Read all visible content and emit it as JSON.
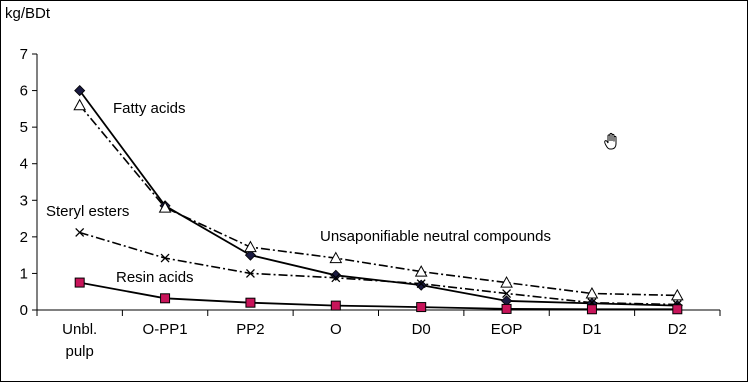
{
  "chart_data": {
    "type": "line",
    "ylabel": "kg/BDt",
    "ylim": [
      0,
      7
    ],
    "yticks": [
      0,
      1,
      2,
      3,
      4,
      5,
      6,
      7
    ],
    "categories": [
      "Unbl. pulp",
      "O-PP1",
      "PP2",
      "O",
      "D0",
      "EOP",
      "D1",
      "D2"
    ],
    "series": [
      {
        "name": "Fatty acids",
        "marker": "diamond",
        "line": "solid",
        "color": "#000000",
        "marker_color": "#1a1a40",
        "values": [
          6.0,
          2.85,
          1.5,
          0.95,
          0.68,
          0.25,
          0.18,
          0.12
        ]
      },
      {
        "name": "Unsaponifiable neutral compounds",
        "marker": "triangle",
        "line": "dashdot",
        "color": "#000000",
        "marker_color": "#ffffff",
        "values": [
          5.6,
          2.8,
          1.72,
          1.42,
          1.05,
          0.75,
          0.45,
          0.4
        ]
      },
      {
        "name": "Steryl esters",
        "marker": "x",
        "line": "dashdot",
        "color": "#000000",
        "marker_color": "#000000",
        "values": [
          2.12,
          1.42,
          1.0,
          0.88,
          0.72,
          0.45,
          0.2,
          0.15
        ]
      },
      {
        "name": "Resin acids",
        "marker": "square",
        "line": "solid",
        "color": "#000000",
        "marker_color": "#c8145a",
        "values": [
          0.75,
          0.32,
          0.2,
          0.12,
          0.08,
          0.03,
          0.02,
          0.02
        ]
      }
    ],
    "grid": false,
    "legend": "inline labels"
  }
}
